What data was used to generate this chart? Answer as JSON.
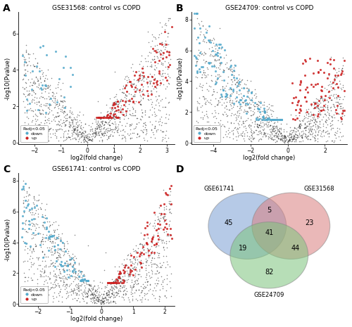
{
  "panel_A": {
    "title": "GSE31568: control vs COPD",
    "xlim": [
      -2.6,
      3.3
    ],
    "ylim": [
      -0.1,
      7.2
    ],
    "xlabel": "log2(fold change)",
    "ylabel": "-log10(Pvalue)",
    "xticks": [
      -2,
      -1,
      0,
      1,
      2,
      3
    ],
    "yticks": [
      0,
      2,
      4,
      6
    ],
    "seed": 42,
    "n_black": 1200,
    "n_red": 110,
    "n_blue": 32
  },
  "panel_B": {
    "title": "GSE24709: control vs COPD",
    "xlim": [
      -5.2,
      3.2
    ],
    "ylim": [
      -0.1,
      8.5
    ],
    "xlabel": "log2(fold change)",
    "ylabel": "-log10(Pvalue)",
    "xticks": [
      -4,
      -2,
      0,
      2
    ],
    "yticks": [
      0,
      2,
      4,
      6,
      8
    ],
    "seed": 7,
    "n_black": 1200,
    "n_red": 90,
    "n_blue": 140
  },
  "panel_C": {
    "title": "GSE61741: control vs COPD",
    "xlim": [
      -2.6,
      2.3
    ],
    "ylim": [
      -0.1,
      8.5
    ],
    "xlabel": "log2(fold change)",
    "ylabel": "-log10(Pvalue)",
    "xticks": [
      -2,
      -1,
      0,
      1,
      2
    ],
    "yticks": [
      0,
      2,
      4,
      6,
      8
    ],
    "seed": 13,
    "n_black": 1200,
    "n_red": 100,
    "n_blue": 95
  },
  "panel_D": {
    "labels": [
      "GSE61741",
      "GSE31568",
      "GSE24709"
    ],
    "counts": {
      "only_A": "45",
      "only_B": "23",
      "only_C": "82",
      "A_and_B": "5",
      "A_and_C": "19",
      "B_and_C": "44",
      "all_three": "41"
    },
    "colors": [
      "#7b9fd4",
      "#d97f7f",
      "#7cc47c"
    ],
    "alpha": 0.55
  },
  "colors": {
    "red": "#cc2222",
    "blue": "#55aacc",
    "black": "#222222"
  },
  "panel_labels": [
    "A",
    "B",
    "C",
    "D"
  ],
  "legend_label_padj": "Padj<0.05",
  "legend_down": "down",
  "legend_up": "up"
}
